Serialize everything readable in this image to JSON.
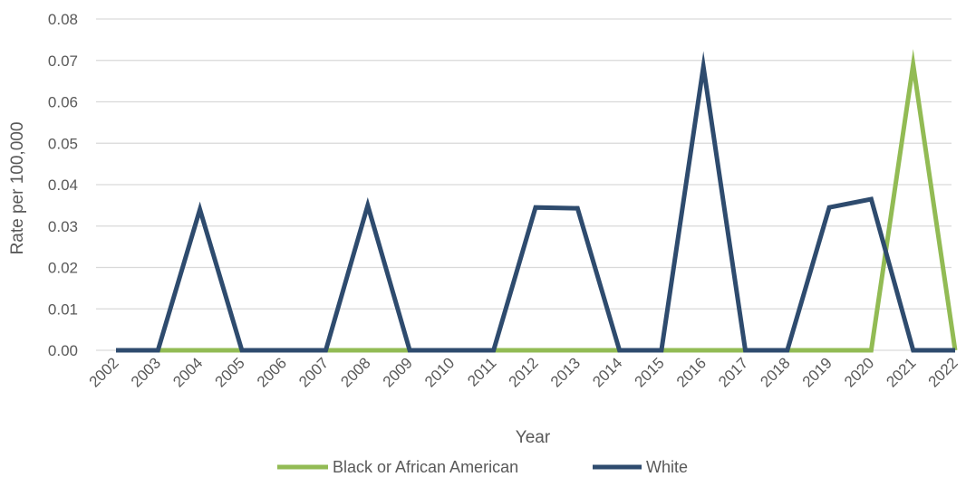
{
  "chart_data": {
    "type": "line",
    "xlabel": "Year",
    "ylabel": "Rate per 100,000",
    "ylim": [
      0,
      0.08
    ],
    "yticks": [
      "0.00",
      "0.01",
      "0.02",
      "0.03",
      "0.04",
      "0.05",
      "0.06",
      "0.07",
      "0.08"
    ],
    "grid": "horizontal",
    "legend_position": "bottom",
    "x": [
      "2002",
      "2003",
      "2004",
      "2005",
      "2006",
      "2007",
      "2008",
      "2009",
      "2010",
      "2011",
      "2012",
      "2013",
      "2014",
      "2015",
      "2016",
      "2017",
      "2018",
      "2019",
      "2020",
      "2021",
      "2022"
    ],
    "series": [
      {
        "name": "Black or African American",
        "color": "#92bb54",
        "values": [
          0,
          0,
          0,
          0,
          0,
          0,
          0,
          0,
          0,
          0,
          0,
          0,
          0,
          0,
          0,
          0,
          0,
          0,
          0,
          0.069,
          0
        ]
      },
      {
        "name": "White",
        "color": "#2e4b6e",
        "values": [
          0,
          0,
          0.034,
          0,
          0,
          0,
          0.035,
          0,
          0,
          0,
          0.0345,
          0.0343,
          0,
          0,
          0.0685,
          0,
          0,
          0.0345,
          0.0365,
          0,
          0
        ]
      }
    ]
  }
}
